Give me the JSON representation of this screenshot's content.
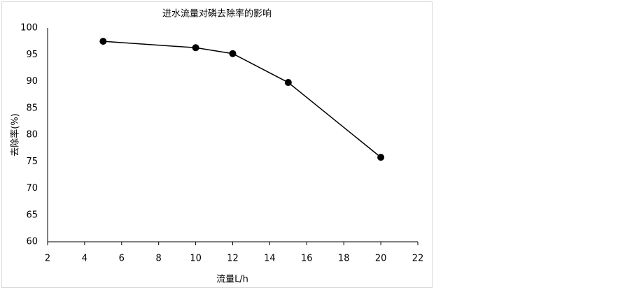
{
  "chart_data": {
    "type": "line",
    "title": "进水流量对磷去除率的影响",
    "x_label": "流量L/h",
    "y_label": "去除率(%)",
    "x": [
      5,
      10,
      12,
      15,
      20
    ],
    "values": [
      97.5,
      96.3,
      95.2,
      89.8,
      75.8
    ],
    "color": "#000000",
    "xlim": [
      2,
      22
    ],
    "xticks": [
      2,
      4,
      6,
      8,
      10,
      12,
      14,
      16,
      18,
      20,
      22
    ],
    "ylim": [
      60,
      100
    ],
    "yticks": [
      60,
      65,
      70,
      75,
      80,
      85,
      90,
      95,
      100
    ],
    "grid": false
  }
}
